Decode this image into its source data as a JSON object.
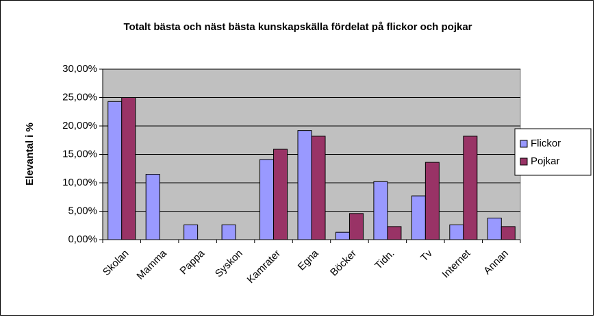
{
  "chart_data": {
    "type": "bar",
    "title": "Totalt bästa och näst bästa kunskapskälla fördelat på flickor och pojkar",
    "y_label": "Elevantal i %",
    "categories": [
      "Skolan",
      "Mamma",
      "Pappa",
      "Syskon",
      "Kamrater",
      "Egna",
      "Böcker",
      "Tidn.",
      "Tv",
      "Internet",
      "Annan"
    ],
    "series": [
      {
        "name": "Flickor",
        "color": "#9999ff",
        "values": [
          24.3,
          11.5,
          2.6,
          2.6,
          14.1,
          19.2,
          1.3,
          10.2,
          7.7,
          2.6,
          3.8
        ]
      },
      {
        "name": "Pojkar",
        "color": "#993366",
        "values": [
          25,
          0,
          0,
          0,
          15.9,
          18.2,
          4.6,
          2.3,
          13.6,
          18.2,
          2.3
        ]
      }
    ],
    "ylim": [
      0,
      30
    ],
    "yticks": [
      {
        "value": 0,
        "label": "0,00%"
      },
      {
        "value": 5,
        "label": "5,00%"
      },
      {
        "value": 10,
        "label": "10,00%"
      },
      {
        "value": 15,
        "label": "15,00%"
      },
      {
        "value": 20,
        "label": "20,00%"
      },
      {
        "value": 25,
        "label": "25,00%"
      },
      {
        "value": 30,
        "label": "30,00%"
      }
    ],
    "grid": true,
    "legend": "right"
  }
}
